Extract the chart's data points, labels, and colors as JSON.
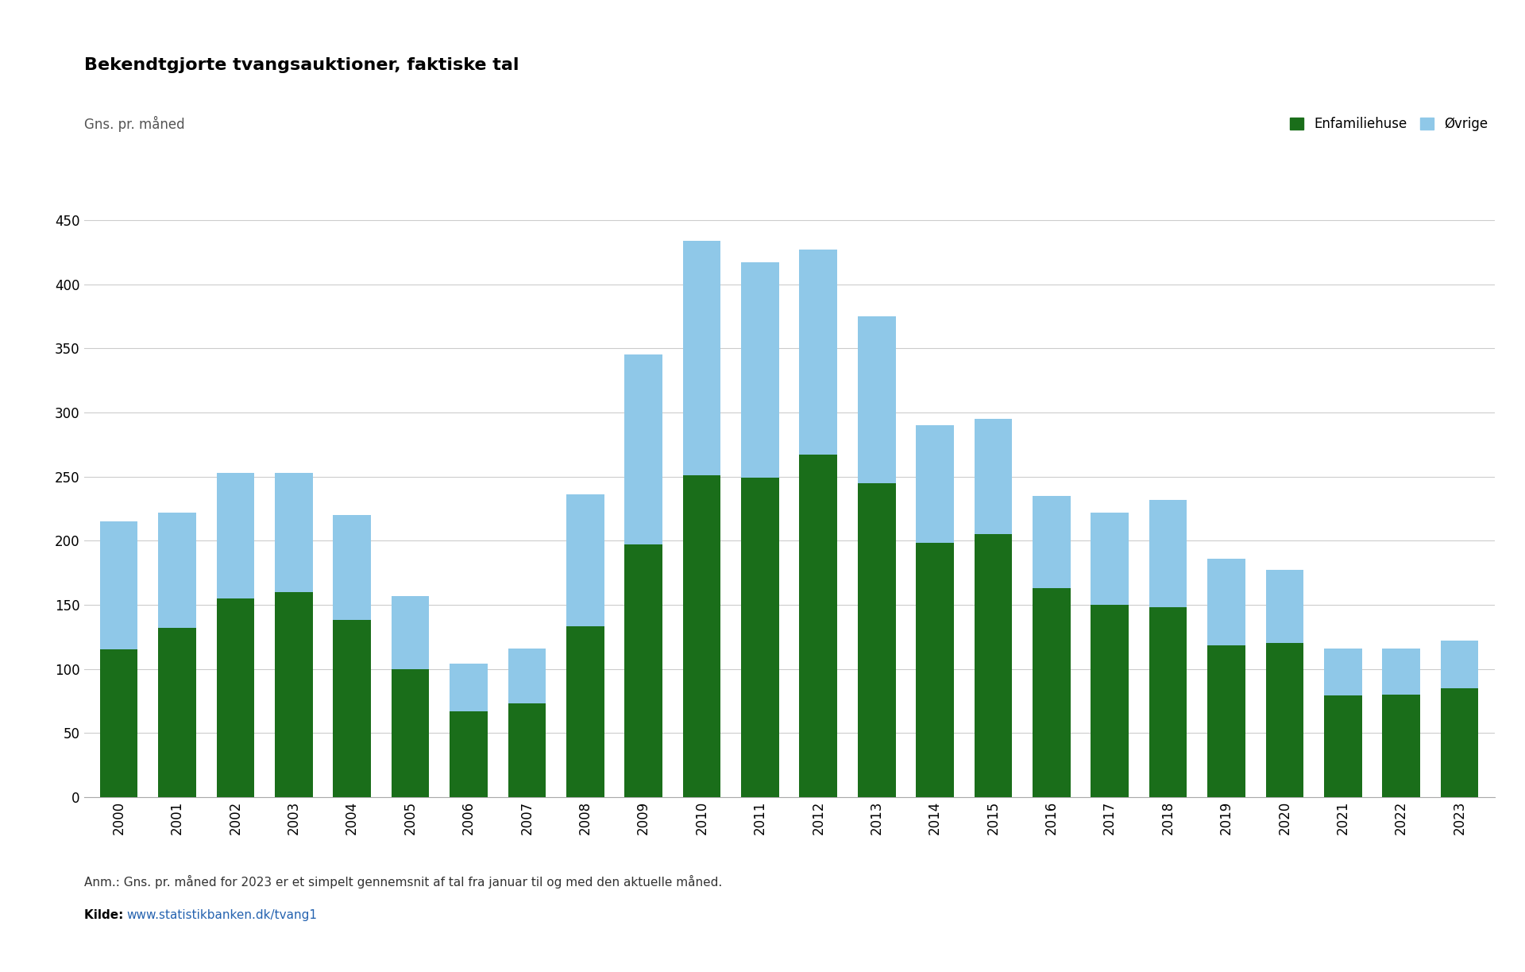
{
  "title": "Bekendtgjorte tvangsauktioner, faktiske tal",
  "ylabel": "Gns. pr. måned",
  "years": [
    "2000",
    "2001",
    "2002",
    "2003",
    "2004",
    "2005",
    "2006",
    "2007",
    "2008",
    "2009",
    "2010",
    "2011",
    "2012",
    "2013",
    "2014",
    "2015",
    "2016",
    "2017",
    "2018",
    "2019",
    "2020",
    "2021",
    "2022",
    "2023"
  ],
  "enfamiliehuse": [
    115,
    132,
    155,
    160,
    138,
    100,
    67,
    73,
    133,
    197,
    251,
    249,
    267,
    245,
    198,
    205,
    163,
    150,
    148,
    118,
    120,
    79,
    80,
    85
  ],
  "ovrige": [
    100,
    90,
    98,
    93,
    82,
    57,
    37,
    43,
    103,
    148,
    183,
    168,
    160,
    130,
    92,
    90,
    72,
    72,
    84,
    68,
    57,
    37,
    36,
    37
  ],
  "bar_color_enfamiliehuse": "#1a6e1a",
  "bar_color_ovrige": "#8fc8e8",
  "background_color": "#ffffff",
  "outer_background": "#e8e8e8",
  "ylim": [
    0,
    470
  ],
  "yticks": [
    0,
    50,
    100,
    150,
    200,
    250,
    300,
    350,
    400,
    450
  ],
  "legend_enfamiliehuse": "Enfamiliehuse",
  "legend_ovrige": "Øvrige",
  "annotation": "Anm.: Gns. pr. måned for 2023 er et simpelt gennemsnit af tal fra januar til og med den aktuelle måned.",
  "source_label": "Kilde: ",
  "source_link": "www.statistikbanken.dk/tvang1",
  "title_fontsize": 16,
  "axis_label_fontsize": 12,
  "tick_fontsize": 12,
  "legend_fontsize": 12,
  "annotation_fontsize": 11
}
